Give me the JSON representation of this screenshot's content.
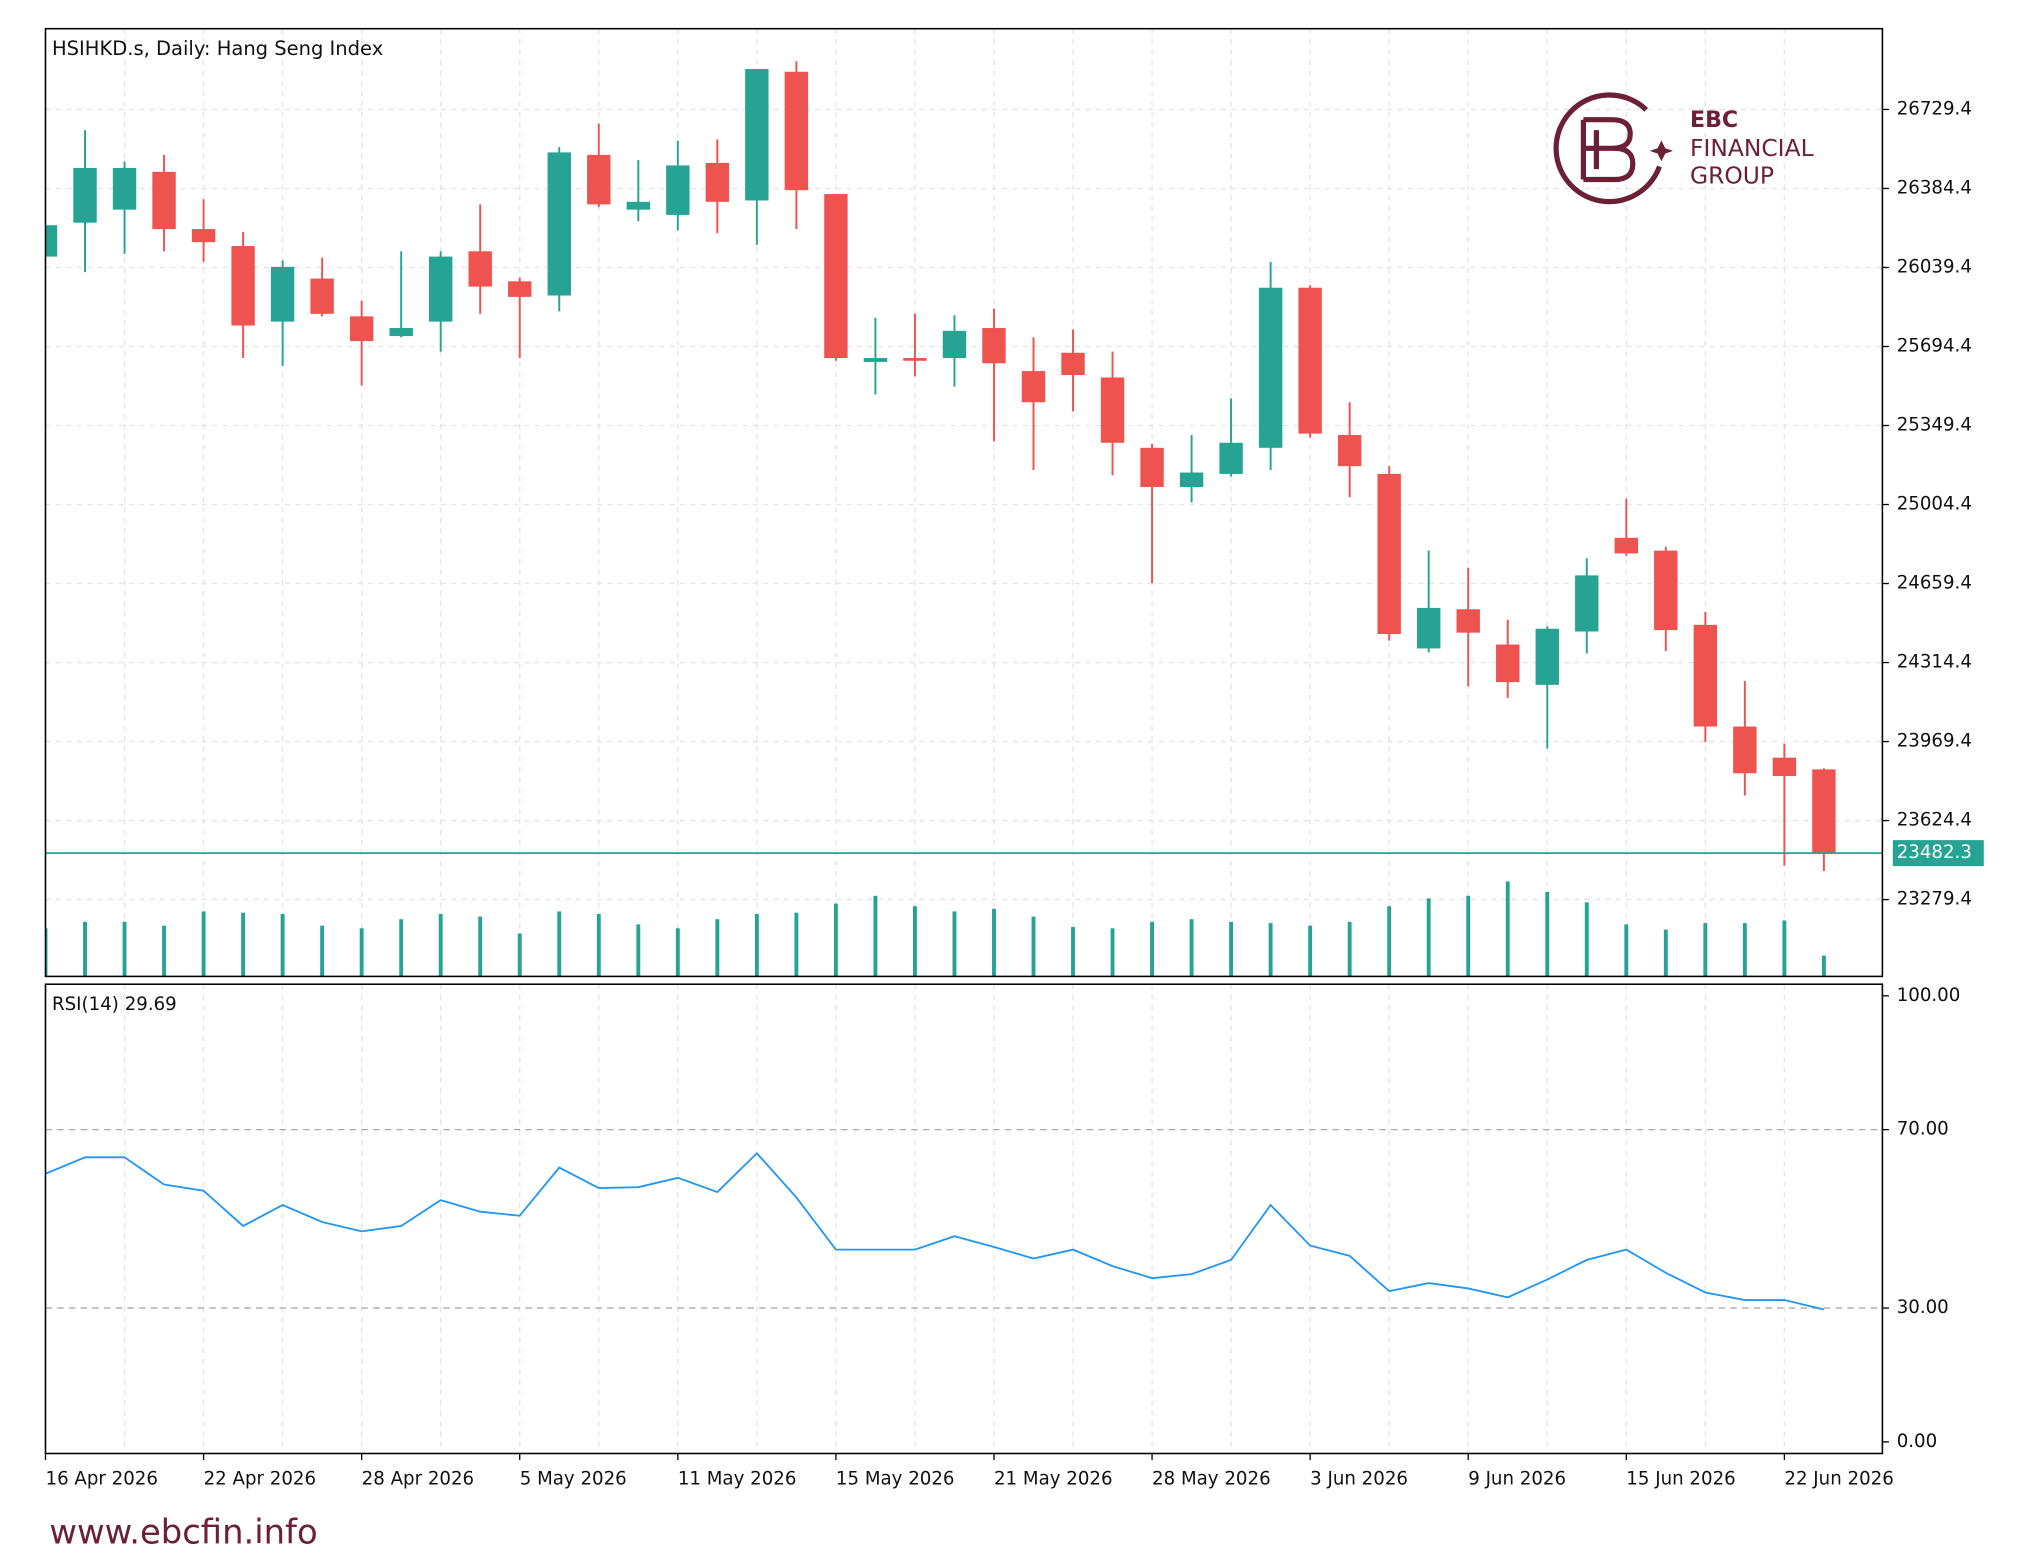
{
  "chart_data": [
    {
      "type": "candlestick",
      "title": "HSIHKD.s, Daily:  Hang Seng Index",
      "categories": [
        "16 Apr 2026",
        null,
        null,
        null,
        "22 Apr 2026",
        null,
        null,
        null,
        "28 Apr 2026",
        null,
        null,
        null,
        "5 May 2026",
        null,
        null,
        null,
        "11 May 2026",
        null,
        null,
        null,
        "15 May 2026",
        null,
        null,
        null,
        "21 May 2026",
        null,
        null,
        null,
        "28 May 2026",
        null,
        null,
        null,
        "3 Jun 2026",
        null,
        null,
        null,
        "9 Jun 2026",
        null,
        null,
        null,
        "15 Jun 2026",
        null,
        null,
        null,
        "22 Jun 2026",
        null
      ],
      "open": [
        26087,
        26235,
        26292,
        26457,
        26207,
        26133,
        25803,
        25991,
        25826,
        25740,
        25803,
        26110,
        25979,
        25917,
        26531,
        26292,
        26269,
        26496,
        26332,
        26894,
        26360,
        25627,
        25644,
        25644,
        25775,
        25587,
        25667,
        25559,
        25252,
        25081,
        25138,
        25252,
        25951,
        25308,
        25138,
        24376,
        24547,
        24393,
        24217,
        24450,
        24859,
        24803,
        24479,
        24035,
        23899,
        23848
      ],
      "high": [
        26224,
        26639,
        26502,
        26531,
        26337,
        26195,
        26070,
        26082,
        25894,
        26110,
        26110,
        26315,
        25996,
        26565,
        26667,
        26508,
        26593,
        26599,
        26906,
        26940,
        26360,
        25820,
        25837,
        25831,
        25860,
        25735,
        25769,
        25672,
        25269,
        25308,
        25468,
        26064,
        25962,
        25451,
        25172,
        24803,
        24729,
        24501,
        24473,
        24769,
        25030,
        24820,
        24535,
        24234,
        23961,
        23853
      ],
      "low": [
        26087,
        26019,
        26099,
        26110,
        26064,
        25644,
        25610,
        25826,
        25524,
        25735,
        25672,
        25837,
        25644,
        25848,
        26303,
        26241,
        26201,
        26189,
        26138,
        26207,
        25632,
        25485,
        25564,
        25519,
        25280,
        25155,
        25411,
        25132,
        24661,
        25013,
        25127,
        25155,
        25297,
        25036,
        24410,
        24359,
        24211,
        24160,
        23939,
        24354,
        24780,
        24365,
        23967,
        23734,
        23427,
        23404
      ],
      "close": [
        26224,
        26474,
        26474,
        26207,
        26150,
        25786,
        26042,
        25837,
        25718,
        25775,
        26087,
        25956,
        25911,
        26542,
        26315,
        26326,
        26485,
        26326,
        26906,
        26377,
        25644,
        25644,
        25632,
        25763,
        25621,
        25451,
        25570,
        25274,
        25081,
        25144,
        25274,
        25951,
        25314,
        25172,
        24439,
        24553,
        24445,
        24229,
        24462,
        24695,
        24791,
        24456,
        24035,
        23831,
        23819,
        23482.3
      ],
      "volume": [
        37,
        42,
        42,
        39,
        50,
        49,
        48,
        39,
        37,
        44,
        48,
        46,
        33,
        50,
        48,
        40,
        37,
        44,
        48,
        49,
        56,
        62,
        54,
        50,
        52,
        46,
        38,
        37,
        42,
        44,
        42,
        41,
        39,
        42,
        54,
        60,
        62,
        73,
        65,
        57,
        40,
        36,
        41,
        41,
        43,
        16
      ],
      "up_color": "#26a393",
      "down_color": "#ef5350",
      "volume_color": "#26a393",
      "last_price": 23482.3,
      "ylim": [
        22944,
        27082
      ],
      "yticks": [
        26729.4,
        26384.4,
        26039.4,
        25694.4,
        25349.4,
        25004.4,
        24659.4,
        24314.4,
        23969.4,
        23624.4,
        23279.4
      ],
      "grid": true
    },
    {
      "type": "line",
      "title": "RSI(14)",
      "color": "#2196f3",
      "values": [
        60.1,
        63.8,
        63.8,
        57.7,
        56.3,
        48.4,
        53.1,
        49.3,
        47.2,
        48.4,
        54.2,
        51.6,
        50.7,
        61.5,
        56.9,
        57.1,
        59.2,
        56.0,
        64.7,
        54.8,
        43.1,
        43.1,
        43.1,
        46.1,
        43.7,
        41.1,
        43.1,
        39.4,
        36.7,
        37.6,
        40.8,
        53.1,
        44.0,
        41.7,
        33.8,
        35.6,
        34.4,
        32.4,
        36.4,
        40.8,
        43.1,
        37.9,
        33.5,
        31.8,
        31.8,
        29.69
      ],
      "ylim": [
        -2.6,
        102.6
      ],
      "yticks": [
        {
          "value": 100,
          "label": "100.00"
        },
        {
          "value": 70,
          "label": "70.00"
        },
        {
          "value": 30,
          "label": "30.00"
        },
        {
          "value": 0,
          "label": "0.00"
        }
      ],
      "levels": [
        70,
        30
      ]
    }
  ],
  "watermark": {
    "brand": "EBC",
    "line1": "FINANCIAL",
    "line2": "GROUP"
  },
  "footer": "www.ebcfin.info"
}
